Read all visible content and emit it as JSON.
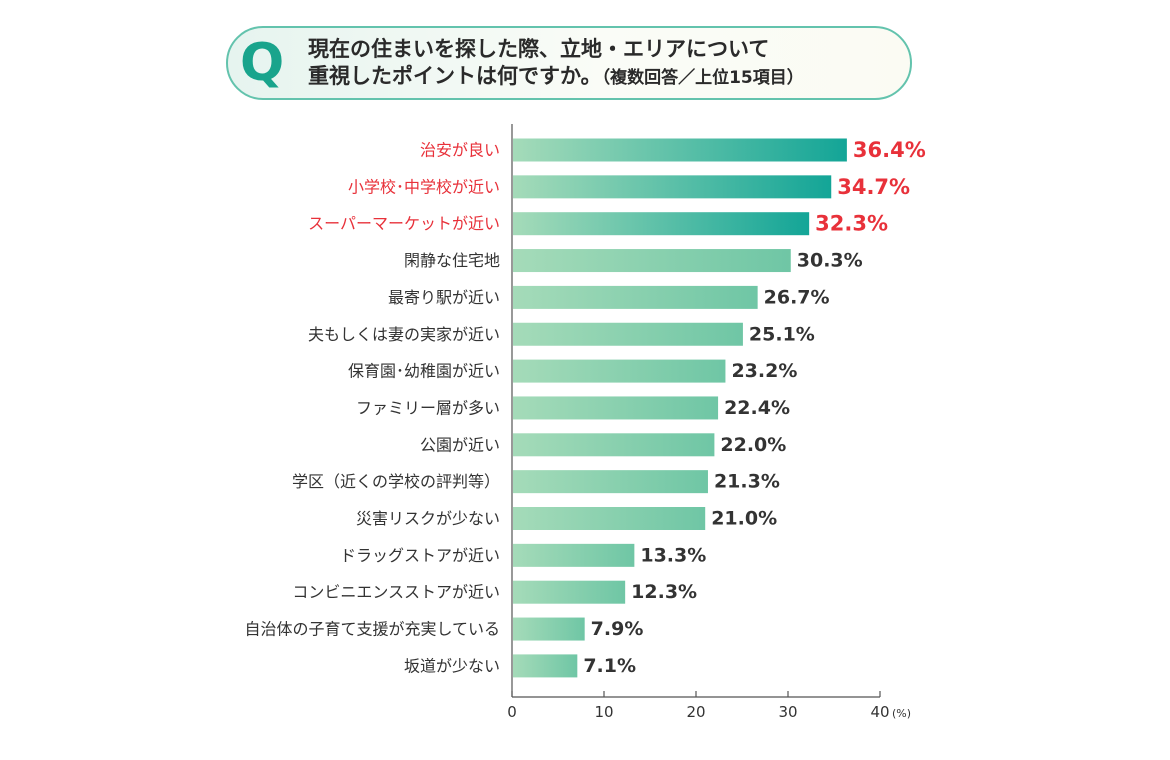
{
  "question": {
    "mark": "Q",
    "line1": "現在の住まいを探した際、立地・エリアについて",
    "line2": "重視したポイントは何ですか。",
    "note": "（複数回答／上位15項目）"
  },
  "chart_data": {
    "type": "bar",
    "orientation": "horizontal",
    "title": "",
    "xlabel": "",
    "ylabel": "",
    "unit": "(%)",
    "xlim": [
      0,
      40
    ],
    "ticks": [
      0,
      10,
      20,
      30,
      40
    ],
    "highlight_count": 3,
    "colors": {
      "highlight_label": "#e8313a",
      "normal_label": "#333333",
      "bar_start": "#a5dbb9",
      "bar_end_highlight": "#13a597",
      "bar_end_normal": "#6fc6a5",
      "axis": "#555555"
    },
    "categories": [
      "治安が良い",
      "小学校･中学校が近い",
      "スーパーマーケットが近い",
      "閑静な住宅地",
      "最寄り駅が近い",
      "夫もしくは妻の実家が近い",
      "保育園･幼稚園が近い",
      "ファミリー層が多い",
      "公園が近い",
      "学区（近くの学校の評判等）",
      "災害リスクが少ない",
      "ドラッグストアが近い",
      "コンビニエンスストアが近い",
      "自治体の子育て支援が充実している",
      "坂道が少ない"
    ],
    "values": [
      36.4,
      34.7,
      32.3,
      30.3,
      26.7,
      25.1,
      23.2,
      22.4,
      22.0,
      21.3,
      21.0,
      13.3,
      12.3,
      7.9,
      7.1
    ],
    "value_labels": [
      "36.4%",
      "34.7%",
      "32.3%",
      "30.3%",
      "26.7%",
      "25.1%",
      "23.2%",
      "22.4%",
      "22.0%",
      "21.3%",
      "21.0%",
      "13.3%",
      "12.3%",
      "7.9%",
      "7.1%"
    ]
  }
}
